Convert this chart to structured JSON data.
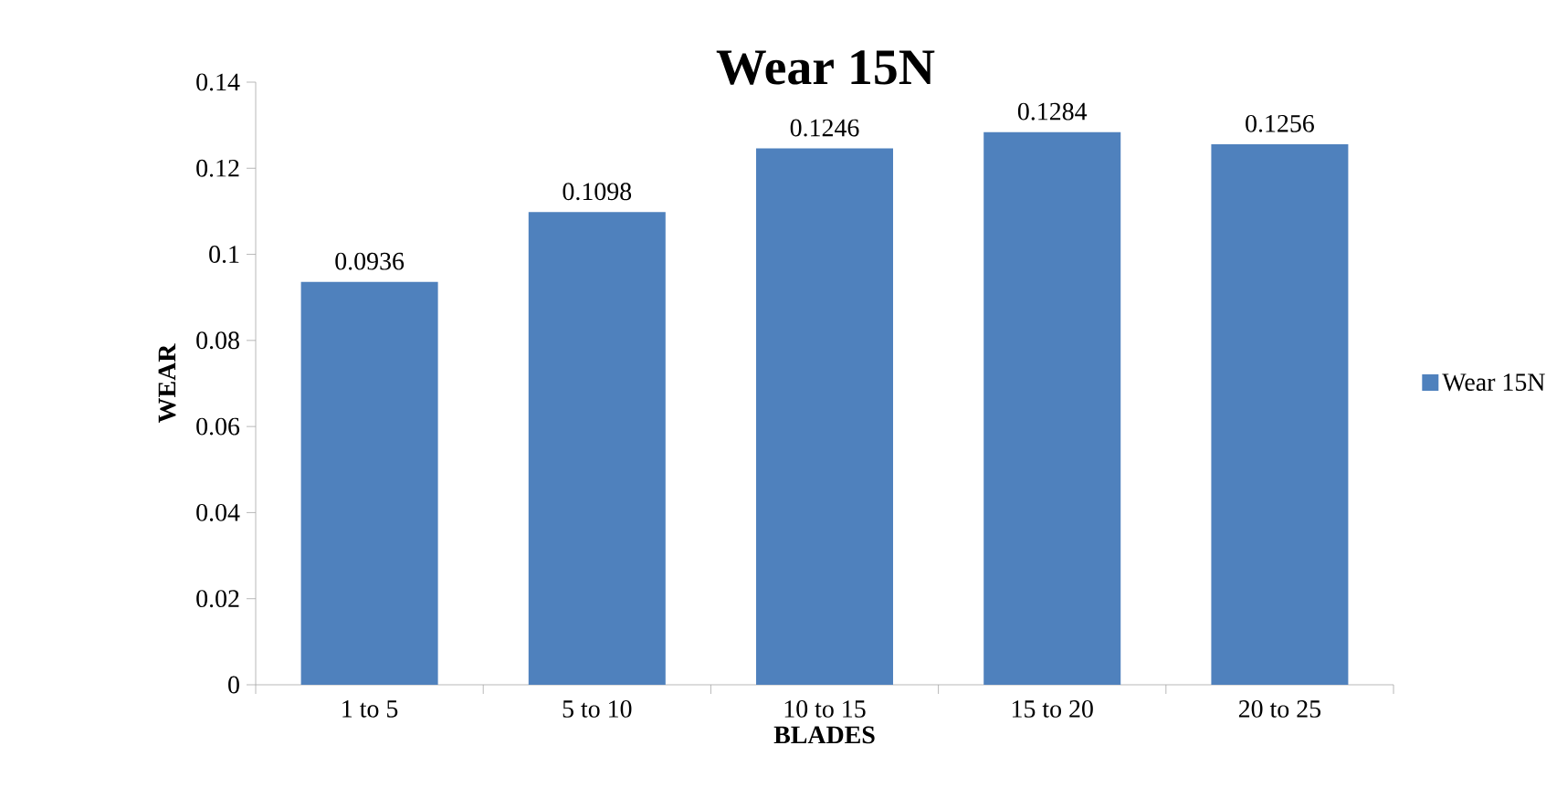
{
  "chart_data": {
    "type": "bar",
    "title": "Wear 15N",
    "xlabel": "BLADES",
    "ylabel": "WEAR",
    "categories": [
      "1 to 5",
      "5 to 10",
      "10 to 15",
      "15 to 20",
      "20 to 25"
    ],
    "series": [
      {
        "name": "Wear 15N",
        "color": "#4f81bd",
        "values": [
          0.0936,
          0.1098,
          0.1246,
          0.1284,
          0.1256
        ]
      }
    ],
    "ylim": [
      0,
      0.14
    ],
    "yticks": [
      0,
      0.02,
      0.04,
      0.06,
      0.08,
      0.1,
      0.12,
      0.14
    ],
    "data_labels": true,
    "legend": "right",
    "grid": false
  }
}
